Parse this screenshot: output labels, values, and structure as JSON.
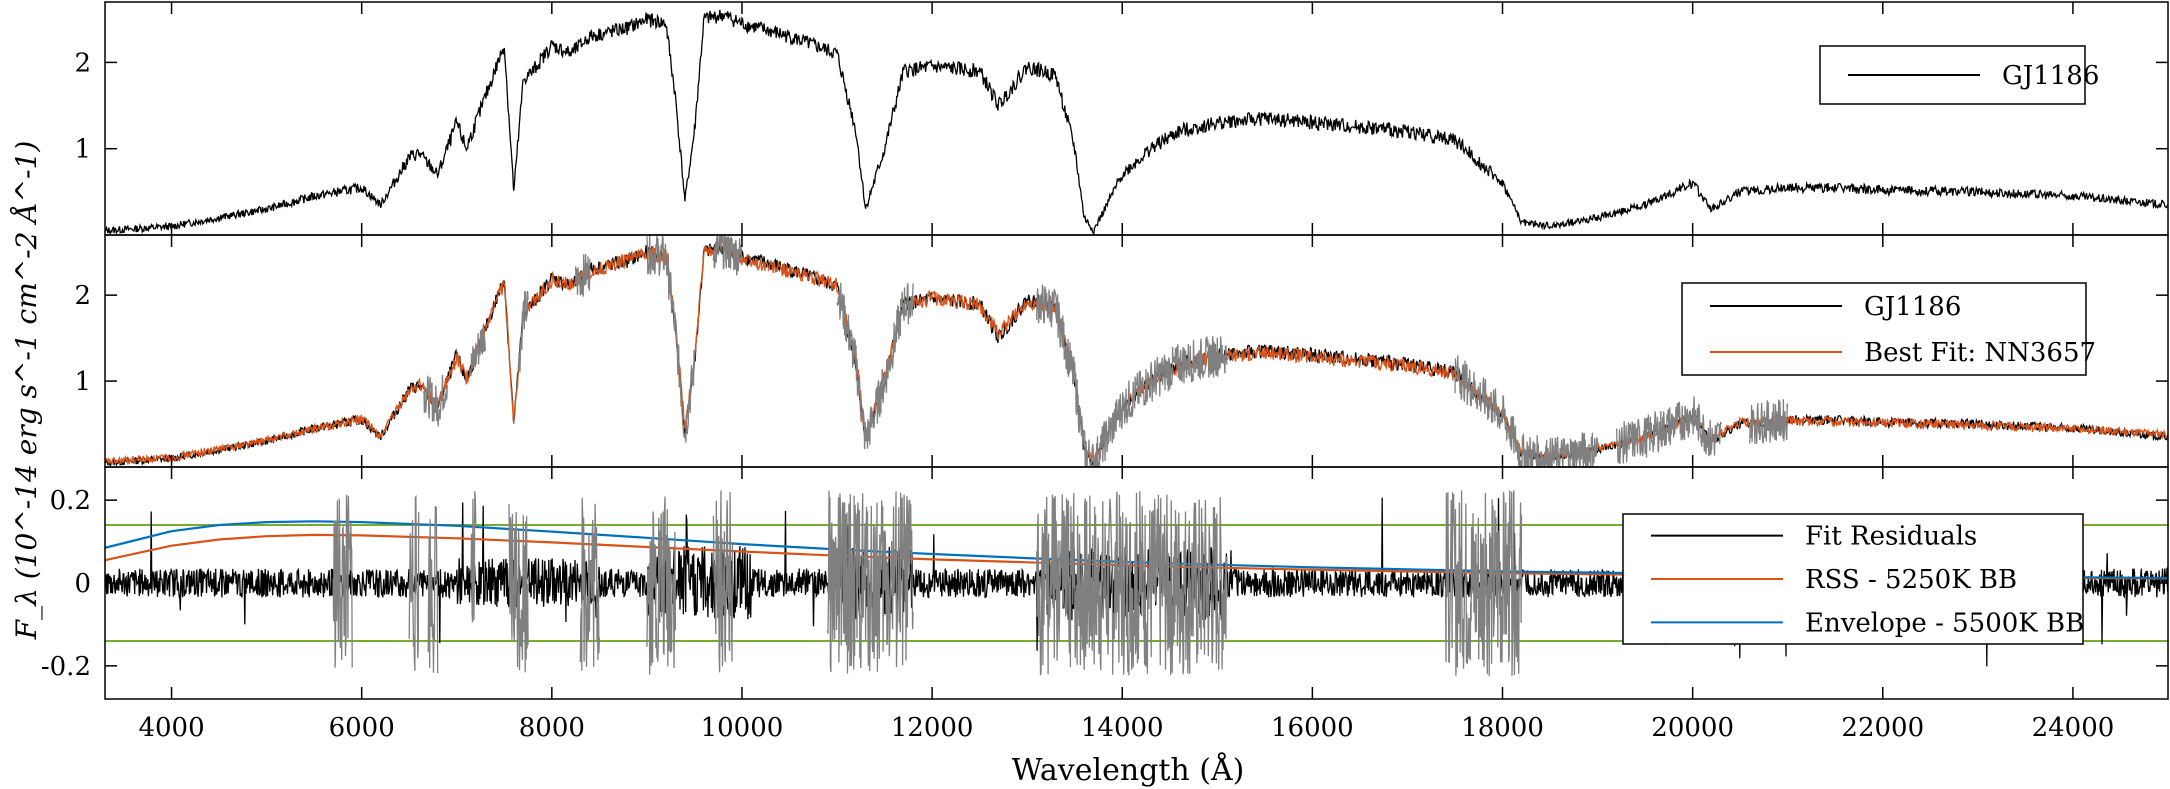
{
  "figure": {
    "ylabel": "F_λ (10^-14 erg s^-1 cm^-2 Å^-1)",
    "xlabel": "Wavelength (Å)"
  },
  "chart_data": [
    {
      "type": "line",
      "panel": "top",
      "xlim": [
        3300,
        25000
      ],
      "ylim": [
        0,
        2.7
      ],
      "yticks": [
        1,
        2
      ],
      "ytick_labels": [
        "1",
        "2"
      ],
      "grid": false,
      "legend": {
        "placement": "top-right",
        "entries": [
          "GJ1186"
        ]
      },
      "series": [
        {
          "name": "GJ1186",
          "color": "#000000",
          "x": [
            3300,
            4000,
            4500,
            5000,
            5500,
            6000,
            6200,
            6500,
            6600,
            6800,
            7000,
            7100,
            7300,
            7500,
            7600,
            7700,
            7800,
            8000,
            8200,
            8400,
            8600,
            8800,
            9000,
            9200,
            9300,
            9400,
            9500,
            9600,
            9800,
            10000,
            10500,
            11000,
            11200,
            11300,
            11500,
            11700,
            12000,
            12500,
            12700,
            13000,
            13300,
            13500,
            13600,
            13700,
            14000,
            14300,
            14600,
            15000,
            15500,
            16000,
            16500,
            17000,
            17500,
            18000,
            18200,
            18500,
            19000,
            19500,
            19800,
            20000,
            20200,
            20500,
            21000,
            21500,
            22000,
            23000,
            24000,
            25000
          ],
          "y": [
            0.05,
            0.1,
            0.2,
            0.3,
            0.45,
            0.55,
            0.35,
            0.9,
            0.95,
            0.7,
            1.3,
            1.0,
            1.6,
            2.2,
            0.5,
            1.8,
            1.9,
            2.2,
            2.1,
            2.3,
            2.35,
            2.4,
            2.5,
            2.45,
            1.6,
            0.4,
            1.2,
            2.5,
            2.55,
            2.45,
            2.3,
            2.1,
            1.2,
            0.3,
            1.0,
            1.9,
            1.95,
            1.9,
            1.5,
            1.95,
            1.85,
            1.0,
            0.2,
            0.05,
            0.7,
            1.0,
            1.2,
            1.3,
            1.35,
            1.3,
            1.25,
            1.2,
            1.1,
            0.6,
            0.15,
            0.1,
            0.2,
            0.35,
            0.5,
            0.6,
            0.3,
            0.5,
            0.55,
            0.55,
            0.52,
            0.5,
            0.45,
            0.35
          ]
        }
      ]
    },
    {
      "type": "line",
      "panel": "middle",
      "xlim": [
        3300,
        25000
      ],
      "ylim": [
        0,
        2.7
      ],
      "yticks": [
        1,
        2
      ],
      "ytick_labels": [
        "1",
        "2"
      ],
      "grid": false,
      "legend": {
        "placement": "top-right",
        "entries": [
          "GJ1186",
          "Best Fit: NN3657"
        ]
      },
      "series": [
        {
          "name": "GJ1186",
          "color": "#000000",
          "x": [
            3300,
            4000,
            4500,
            5000,
            5500,
            6000,
            6200,
            6500,
            6600,
            6800,
            7000,
            7100,
            7300,
            7500,
            7600,
            7700,
            7800,
            8000,
            8200,
            8400,
            8600,
            8800,
            9000,
            9200,
            9300,
            9400,
            9500,
            9600,
            9800,
            10000,
            10500,
            11000,
            11200,
            11300,
            11500,
            11700,
            12000,
            12500,
            12700,
            13000,
            13300,
            13500,
            13600,
            13700,
            14000,
            14300,
            14600,
            15000,
            15500,
            16000,
            16500,
            17000,
            17500,
            18000,
            18200,
            18500,
            19000,
            19500,
            19800,
            20000,
            20200,
            20500,
            21000,
            21500,
            22000,
            23000,
            24000,
            25000
          ],
          "y": [
            0.05,
            0.1,
            0.2,
            0.3,
            0.45,
            0.55,
            0.35,
            0.9,
            0.95,
            0.7,
            1.3,
            1.0,
            1.6,
            2.2,
            0.5,
            1.8,
            1.9,
            2.2,
            2.1,
            2.3,
            2.35,
            2.4,
            2.5,
            2.45,
            1.6,
            0.4,
            1.2,
            2.5,
            2.55,
            2.45,
            2.3,
            2.1,
            1.2,
            0.3,
            1.0,
            1.9,
            1.95,
            1.9,
            1.5,
            1.95,
            1.85,
            1.0,
            0.2,
            0.05,
            0.7,
            1.0,
            1.2,
            1.3,
            1.35,
            1.3,
            1.25,
            1.2,
            1.1,
            0.6,
            0.15,
            0.1,
            0.2,
            0.35,
            0.5,
            0.6,
            0.3,
            0.5,
            0.55,
            0.55,
            0.52,
            0.5,
            0.45,
            0.35
          ]
        },
        {
          "name": "Best Fit: NN3657",
          "color": "#d95319",
          "x": [
            3300,
            4000,
            4500,
            5000,
            5500,
            6000,
            6200,
            6500,
            6600,
            6800,
            7000,
            7100,
            7300,
            7500,
            7600,
            7700,
            7800,
            8000,
            8200,
            8400,
            8600,
            8800,
            9000,
            9200,
            9300,
            9400,
            9500,
            9600,
            9800,
            10000,
            10500,
            11000,
            11200,
            11300,
            11500,
            11700,
            12000,
            12500,
            12700,
            13000,
            13300,
            13500,
            13600,
            13700,
            14000,
            14300,
            14600,
            15000,
            15500,
            16000,
            16500,
            17000,
            17500,
            18000,
            18200,
            18500,
            19000,
            19500,
            19800,
            20000,
            20200,
            20500,
            21000,
            21500,
            22000,
            23000,
            24000,
            25000
          ],
          "y": [
            0.06,
            0.11,
            0.21,
            0.31,
            0.44,
            0.56,
            0.36,
            0.88,
            0.97,
            0.72,
            1.28,
            1.02,
            1.58,
            2.15,
            0.55,
            1.75,
            1.92,
            2.18,
            2.12,
            2.28,
            2.33,
            2.42,
            2.48,
            2.47,
            1.65,
            0.45,
            1.25,
            2.48,
            2.6,
            2.42,
            2.28,
            2.12,
            1.25,
            0.35,
            1.05,
            1.88,
            1.97,
            1.88,
            1.55,
            1.93,
            1.83,
            1.05,
            0.25,
            0.08,
            0.68,
            1.02,
            1.18,
            1.28,
            1.33,
            1.28,
            1.23,
            1.18,
            1.08,
            0.62,
            0.18,
            0.12,
            0.22,
            0.33,
            0.48,
            0.58,
            0.33,
            0.52,
            0.54,
            0.53,
            0.51,
            0.49,
            0.44,
            0.38
          ]
        }
      ],
      "masked_ranges_gray": [
        [
          6650,
          6900
        ],
        [
          7150,
          7300
        ],
        [
          7650,
          7750
        ],
        [
          8250,
          8400
        ],
        [
          9000,
          9500
        ],
        [
          9700,
          10000
        ],
        [
          11000,
          11800
        ],
        [
          13100,
          15100
        ],
        [
          17500,
          19000
        ],
        [
          19200,
          20300
        ],
        [
          20600,
          21000
        ]
      ]
    },
    {
      "type": "line",
      "panel": "bottom",
      "xlim": [
        3300,
        25000
      ],
      "ylim": [
        -0.28,
        0.28
      ],
      "yticks": [
        -0.2,
        0,
        0.2
      ],
      "ytick_labels": [
        "-0.2",
        "0",
        "0.2"
      ],
      "grid": false,
      "legend": {
        "placement": "right",
        "entries": [
          "Fit Residuals",
          "RSS - 5250K BB",
          "Envelope - 5500K BB"
        ]
      },
      "horizontal_lines": {
        "color": "#77ac30",
        "y": [
          0.14,
          -0.14
        ]
      },
      "series": [
        {
          "name": "Fit Residuals",
          "color": "#000000",
          "x": [
            3300,
            4000,
            5000,
            6000,
            7000,
            8000,
            9000,
            10000,
            11000,
            12000,
            13000,
            14000,
            15000,
            16000,
            17000,
            18000,
            19000,
            20000,
            21000,
            22000,
            23000,
            24000,
            25000
          ],
          "y": [
            0.0,
            0.01,
            0.0,
            0.01,
            0.02,
            0.0,
            -0.01,
            0.01,
            0.0,
            0.01,
            -0.01,
            0.0,
            0.01,
            0.0,
            0.0,
            0.01,
            0.0,
            0.0,
            0.0,
            0.0,
            0.0,
            0.01,
            0.0
          ]
        },
        {
          "name": "RSS - 5250K BB",
          "color": "#d95319",
          "x": [
            3300,
            4000,
            4500,
            5000,
            5500,
            6000,
            7000,
            8000,
            9000,
            10000,
            11000,
            12000,
            13000,
            14000,
            15000,
            16000,
            17000,
            18000,
            19000,
            20000,
            22000,
            24000,
            25000
          ],
          "y": [
            0.055,
            0.09,
            0.105,
            0.113,
            0.116,
            0.115,
            0.108,
            0.098,
            0.087,
            0.076,
            0.066,
            0.057,
            0.05,
            0.043,
            0.037,
            0.032,
            0.028,
            0.024,
            0.021,
            0.019,
            0.015,
            0.012,
            0.011
          ]
        },
        {
          "name": "Envelope - 5500K BB",
          "color": "#0072bd",
          "x": [
            3300,
            4000,
            4500,
            5000,
            5500,
            6000,
            7000,
            8000,
            9000,
            10000,
            11000,
            12000,
            13000,
            14000,
            15000,
            16000,
            17000,
            18000,
            19000,
            20000,
            22000,
            24000,
            25000
          ],
          "y": [
            0.085,
            0.125,
            0.14,
            0.147,
            0.149,
            0.147,
            0.138,
            0.124,
            0.109,
            0.094,
            0.081,
            0.07,
            0.06,
            0.051,
            0.044,
            0.038,
            0.033,
            0.028,
            0.025,
            0.022,
            0.017,
            0.014,
            0.012
          ]
        }
      ],
      "masked_ranges_gray": [
        [
          5700,
          5900
        ],
        [
          6500,
          6600
        ],
        [
          6700,
          6800
        ],
        [
          7150,
          7200
        ],
        [
          7550,
          7750
        ],
        [
          8300,
          8500
        ],
        [
          9000,
          9300
        ],
        [
          9700,
          9900
        ],
        [
          10900,
          11800
        ],
        [
          13100,
          15100
        ],
        [
          17400,
          18200
        ]
      ]
    }
  ],
  "x_axis": {
    "ticks": [
      4000,
      6000,
      8000,
      10000,
      12000,
      14000,
      16000,
      18000,
      20000,
      22000,
      24000
    ],
    "tick_labels": [
      "4000",
      "6000",
      "8000",
      "10000",
      "12000",
      "14000",
      "16000",
      "18000",
      "20000",
      "22000",
      "24000"
    ]
  },
  "colors": {
    "data": "#000000",
    "fit": "#d95319",
    "envelope": "#0072bd",
    "threshold": "#77ac30",
    "masked": "#808080"
  }
}
